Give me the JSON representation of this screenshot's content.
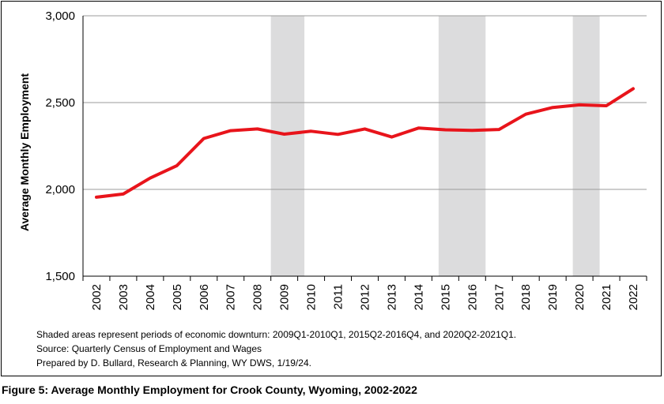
{
  "chart_data": {
    "type": "line",
    "title": "",
    "xlabel": "",
    "ylabel": "Average Monthly Employment",
    "x": [
      "2002",
      "2003",
      "2004",
      "2005",
      "2006",
      "2007",
      "2008",
      "2009",
      "2010",
      "2011",
      "2012",
      "2013",
      "2014",
      "2015",
      "2016",
      "2017",
      "2018",
      "2019",
      "2020",
      "2021",
      "2022"
    ],
    "series": [
      {
        "name": "",
        "color": "#e8141b",
        "values": [
          1955,
          1973,
          2065,
          2137,
          2293,
          2338,
          2348,
          2318,
          2335,
          2317,
          2348,
          2302,
          2353,
          2343,
          2340,
          2345,
          2433,
          2472,
          2487,
          2482,
          2580
        ]
      }
    ],
    "y_ticks": [
      "1,500",
      "2,000",
      "2,500",
      "3,000"
    ],
    "y_tick_values": [
      1500,
      2000,
      2500,
      3000
    ],
    "ylim": [
      1500,
      3000
    ],
    "grid": "horizontal",
    "legend": "none",
    "shaded_periods": [
      {
        "start": 2009.0,
        "end": 2010.25
      },
      {
        "start": 2015.25,
        "end": 2017.0
      },
      {
        "start": 2020.25,
        "end": 2021.25
      }
    ],
    "shade_color": "#dcdcdd",
    "line_color": "#e8141b",
    "grid_color": "#9b9b9b"
  },
  "notes": {
    "line1": "Shaded areas represent periods of economic downturn: 2009Q1-2010Q1, 2015Q2-2016Q4, and 2020Q2-2021Q1.",
    "line2": "Source: Quarterly Census of Employment and Wages",
    "line3": "Prepared by D. Bullard, Research & Planning, WY DWS, 1/19/24."
  },
  "caption": "Figure 5: Average Monthly Employment for Crook County, Wyoming, 2002-2022"
}
